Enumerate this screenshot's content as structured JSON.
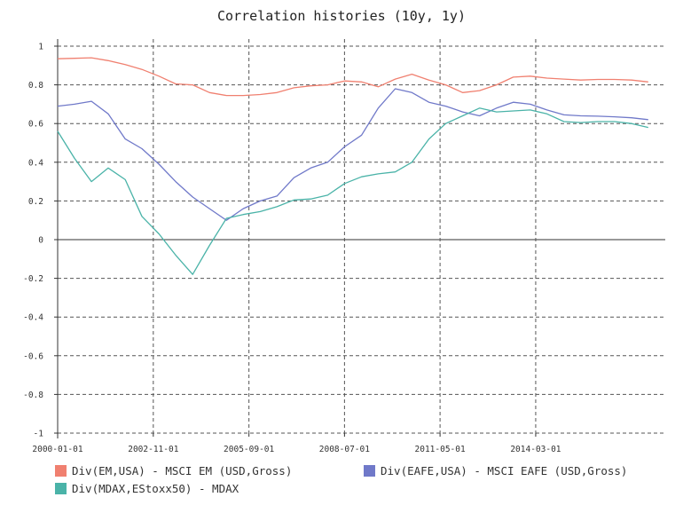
{
  "chart_data": {
    "type": "line",
    "title": "Correlation histories (10y, 1y)",
    "xlabel": "",
    "ylabel": "",
    "xlim": [
      "2000-01-01",
      "2018-01-01"
    ],
    "ylim": [
      -1,
      1
    ],
    "x_ticks": [
      "2000-01-01",
      "2002-11-01",
      "2005-09-01",
      "2008-07-01",
      "2011-05-01",
      "2014-03-01"
    ],
    "y_ticks": [
      1,
      0.8,
      0.6,
      0.4,
      0.2,
      0,
      -0.2,
      -0.4,
      -0.6,
      -0.8,
      -1
    ],
    "y_tick_labels": [
      "1",
      "0.8",
      "0.6",
      "0.4",
      "0.2",
      "0",
      "-0.2",
      "-0.4",
      "-0.6",
      "-0.8",
      "-1"
    ],
    "grid": true,
    "legend_position": "bottom",
    "series": [
      {
        "name": "Div(EM,USA) - MSCI EM (USD,Gross)",
        "color": "#f08070",
        "x": [
          "2000-01-01",
          "2000-07-01",
          "2001-01-01",
          "2001-07-01",
          "2002-01-01",
          "2002-07-01",
          "2003-01-01",
          "2003-07-01",
          "2004-01-01",
          "2004-07-01",
          "2005-01-01",
          "2005-07-01",
          "2006-01-01",
          "2006-07-01",
          "2007-01-01",
          "2007-07-01",
          "2008-01-01",
          "2008-07-01",
          "2009-01-01",
          "2009-07-01",
          "2010-01-01",
          "2010-07-01",
          "2011-01-01",
          "2011-07-01",
          "2012-01-01",
          "2012-07-01",
          "2013-01-01",
          "2013-07-01",
          "2014-01-01",
          "2014-07-01",
          "2015-01-01",
          "2015-07-01",
          "2016-01-01",
          "2016-07-01",
          "2017-01-01",
          "2017-07-01"
        ],
        "values": [
          0.935,
          0.937,
          0.94,
          0.925,
          0.905,
          0.88,
          0.845,
          0.805,
          0.8,
          0.76,
          0.745,
          0.745,
          0.75,
          0.76,
          0.785,
          0.795,
          0.8,
          0.82,
          0.815,
          0.79,
          0.83,
          0.855,
          0.825,
          0.8,
          0.76,
          0.77,
          0.8,
          0.84,
          0.845,
          0.835,
          0.83,
          0.825,
          0.828,
          0.828,
          0.825,
          0.815
        ]
      },
      {
        "name": "Div(EAFE,USA) - MSCI EAFE (USD,Gross)",
        "color": "#7079c9",
        "x": [
          "2000-01-01",
          "2000-07-01",
          "2001-01-01",
          "2001-07-01",
          "2002-01-01",
          "2002-07-01",
          "2003-01-01",
          "2003-07-01",
          "2004-01-01",
          "2004-07-01",
          "2005-01-01",
          "2005-07-01",
          "2006-01-01",
          "2006-07-01",
          "2007-01-01",
          "2007-07-01",
          "2008-01-01",
          "2008-07-01",
          "2009-01-01",
          "2009-07-01",
          "2010-01-01",
          "2010-07-01",
          "2011-01-01",
          "2011-07-01",
          "2012-01-01",
          "2012-07-01",
          "2013-01-01",
          "2013-07-01",
          "2014-01-01",
          "2014-07-01",
          "2015-01-01",
          "2015-07-01",
          "2016-01-01",
          "2016-07-01",
          "2017-01-01",
          "2017-07-01"
        ],
        "values": [
          0.69,
          0.7,
          0.715,
          0.65,
          0.52,
          0.47,
          0.39,
          0.3,
          0.22,
          0.16,
          0.1,
          0.16,
          0.2,
          0.225,
          0.32,
          0.37,
          0.4,
          0.48,
          0.54,
          0.68,
          0.78,
          0.76,
          0.71,
          0.69,
          0.66,
          0.64,
          0.68,
          0.71,
          0.7,
          0.67,
          0.645,
          0.64,
          0.638,
          0.635,
          0.63,
          0.62
        ]
      },
      {
        "name": "Div(MDAX,EStoxx50) - MDAX",
        "color": "#4ab3a8",
        "x": [
          "2000-01-01",
          "2000-07-01",
          "2001-01-01",
          "2001-07-01",
          "2002-01-01",
          "2002-07-01",
          "2003-01-01",
          "2003-07-01",
          "2004-01-01",
          "2004-07-01",
          "2005-01-01",
          "2005-07-01",
          "2006-01-01",
          "2006-07-01",
          "2007-01-01",
          "2007-07-01",
          "2008-01-01",
          "2008-07-01",
          "2009-01-01",
          "2009-07-01",
          "2010-01-01",
          "2010-07-01",
          "2011-01-01",
          "2011-07-01",
          "2012-01-01",
          "2012-07-01",
          "2013-01-01",
          "2013-07-01",
          "2014-01-01",
          "2014-07-01",
          "2015-01-01",
          "2015-07-01",
          "2016-01-01",
          "2016-07-01",
          "2017-01-01",
          "2017-07-01"
        ],
        "values": [
          0.56,
          0.42,
          0.3,
          0.37,
          0.31,
          0.12,
          0.03,
          -0.08,
          -0.18,
          -0.03,
          0.11,
          0.13,
          0.145,
          0.17,
          0.205,
          0.21,
          0.23,
          0.29,
          0.325,
          0.34,
          0.35,
          0.4,
          0.52,
          0.6,
          0.64,
          0.68,
          0.66,
          0.665,
          0.67,
          0.65,
          0.61,
          0.605,
          0.61,
          0.61,
          0.6,
          0.58
        ]
      }
    ]
  }
}
